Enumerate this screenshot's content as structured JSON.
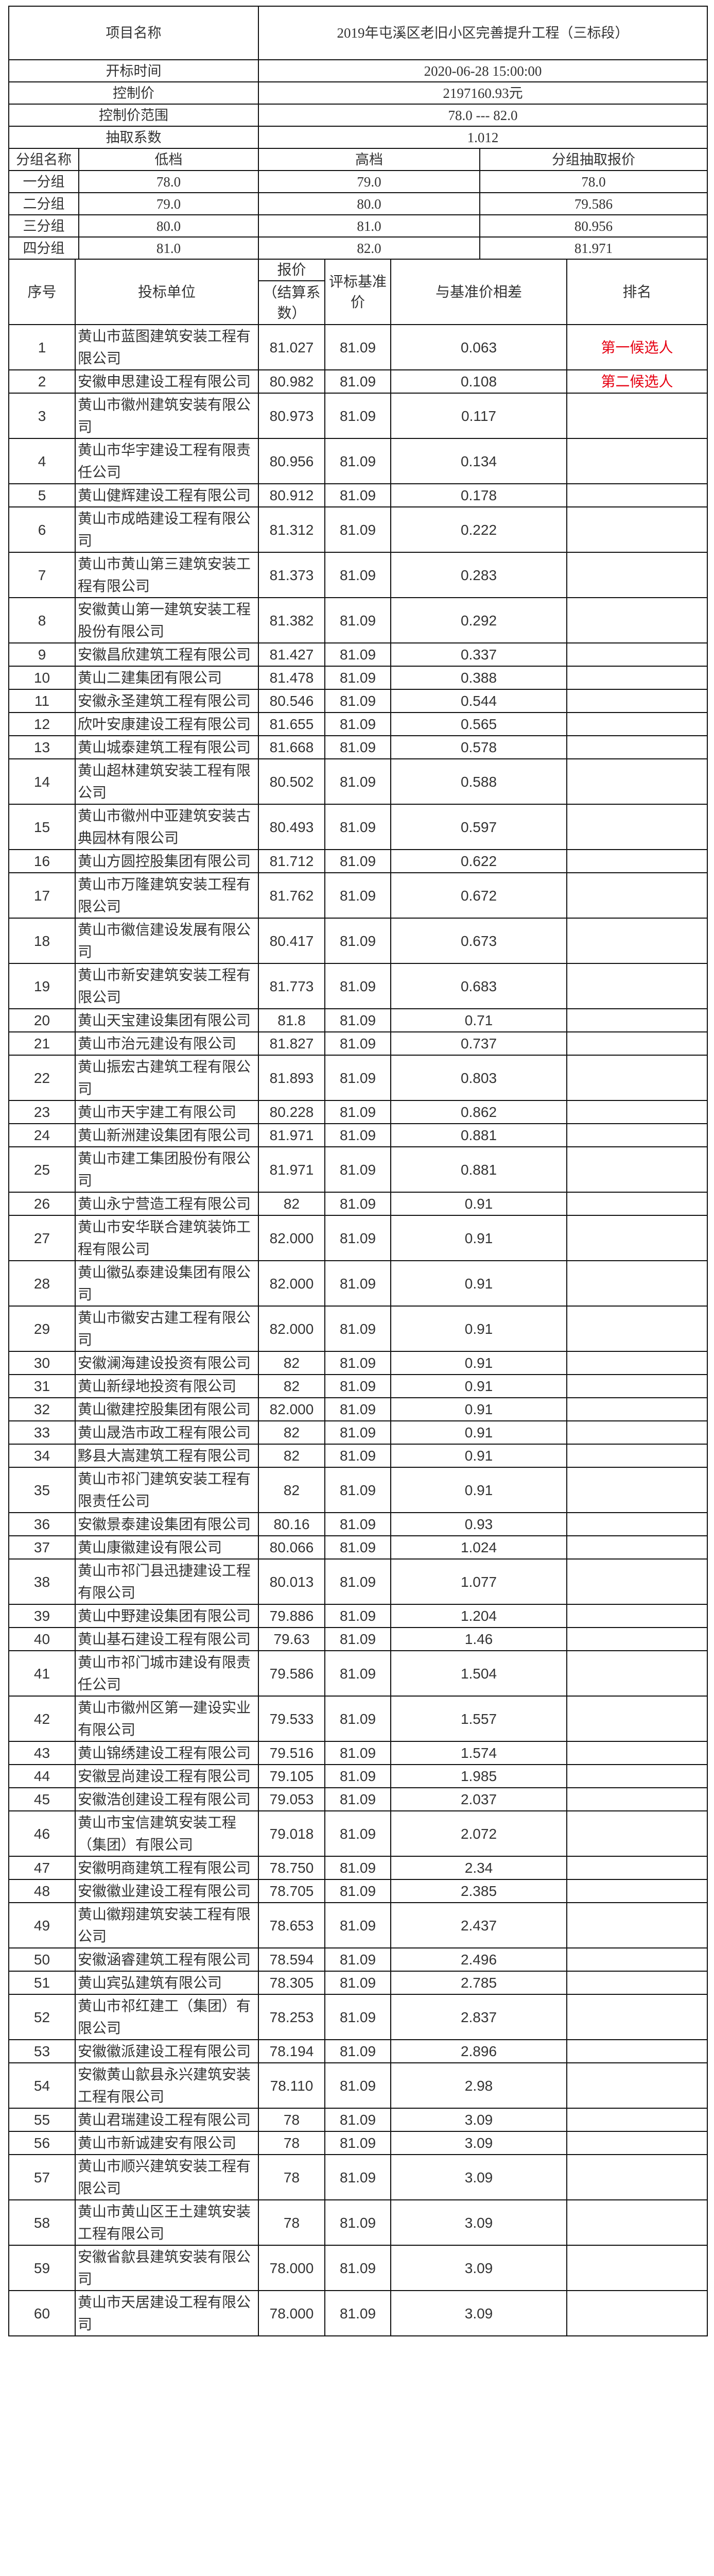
{
  "info": {
    "project_label": "项目名称",
    "project_value": "2019年屯溪区老旧小区完善提升工程（三标段）",
    "open_time_label": "开标时间",
    "open_time_value": "2020-06-28 15:00:00",
    "control_price_label": "控制价",
    "control_price_value": "2197160.93元",
    "control_range_label": "控制价范围",
    "control_range_value": "78.0 --- 82.0",
    "coefficient_label": "抽取系数",
    "coefficient_value": "1.012"
  },
  "groups": {
    "headers": [
      "分组名称",
      "低档",
      "高档",
      "分组抽取报价"
    ],
    "rows": [
      [
        "一分组",
        "78.0",
        "79.0",
        "78.0"
      ],
      [
        "二分组",
        "79.0",
        "80.0",
        "79.586"
      ],
      [
        "三分组",
        "80.0",
        "81.0",
        "80.956"
      ],
      [
        "四分组",
        "81.0",
        "82.0",
        "81.971"
      ]
    ]
  },
  "results": {
    "headers": {
      "no": "序号",
      "bidder": "投标单位",
      "bid_top": "报价",
      "bid_bottom": "（结算系数）",
      "base": "评标基准价",
      "diff": "与基准价相差",
      "rank": "排名"
    },
    "rank_color": "#e60012",
    "rows": [
      [
        "1",
        "黄山市蓝图建筑安装工程有限公司",
        "81.027",
        "81.09",
        "0.063",
        "第一候选人"
      ],
      [
        "2",
        "安徽申思建设工程有限公司",
        "80.982",
        "81.09",
        "0.108",
        "第二候选人"
      ],
      [
        "3",
        "黄山市徽州建筑安装有限公司",
        "80.973",
        "81.09",
        "0.117",
        ""
      ],
      [
        "4",
        "黄山市华宇建设工程有限责任公司",
        "80.956",
        "81.09",
        "0.134",
        ""
      ],
      [
        "5",
        "黄山健辉建设工程有限公司",
        "80.912",
        "81.09",
        "0.178",
        ""
      ],
      [
        "6",
        "黄山市成皓建设工程有限公司",
        "81.312",
        "81.09",
        "0.222",
        ""
      ],
      [
        "7",
        "黄山市黄山第三建筑安装工程有限公司",
        "81.373",
        "81.09",
        "0.283",
        ""
      ],
      [
        "8",
        "安徽黄山第一建筑安装工程股份有限公司",
        "81.382",
        "81.09",
        "0.292",
        ""
      ],
      [
        "9",
        "安徽昌欣建筑工程有限公司",
        "81.427",
        "81.09",
        "0.337",
        ""
      ],
      [
        "10",
        "黄山二建集团有限公司",
        "81.478",
        "81.09",
        "0.388",
        ""
      ],
      [
        "11",
        "安徽永圣建筑工程有限公司",
        "80.546",
        "81.09",
        "0.544",
        ""
      ],
      [
        "12",
        "欣叶安康建设工程有限公司",
        "81.655",
        "81.09",
        "0.565",
        ""
      ],
      [
        "13",
        "黄山城泰建筑工程有限公司",
        "81.668",
        "81.09",
        "0.578",
        ""
      ],
      [
        "14",
        "黄山超林建筑安装工程有限公司",
        "80.502",
        "81.09",
        "0.588",
        ""
      ],
      [
        "15",
        "黄山市徽州中亚建筑安装古典园林有限公司",
        "80.493",
        "81.09",
        "0.597",
        ""
      ],
      [
        "16",
        "黄山方圆控股集团有限公司",
        "81.712",
        "81.09",
        "0.622",
        ""
      ],
      [
        "17",
        "黄山市万隆建筑安装工程有限公司",
        "81.762",
        "81.09",
        "0.672",
        ""
      ],
      [
        "18",
        "黄山市徽信建设发展有限公司",
        "80.417",
        "81.09",
        "0.673",
        ""
      ],
      [
        "19",
        "黄山市新安建筑安装工程有限公司",
        "81.773",
        "81.09",
        "0.683",
        ""
      ],
      [
        "20",
        "黄山天宝建设集团有限公司",
        "81.8",
        "81.09",
        "0.71",
        ""
      ],
      [
        "21",
        "黄山市治元建设有限公司",
        "81.827",
        "81.09",
        "0.737",
        ""
      ],
      [
        "22",
        "黄山振宏古建筑工程有限公司",
        "81.893",
        "81.09",
        "0.803",
        ""
      ],
      [
        "23",
        "黄山市天宇建工有限公司",
        "80.228",
        "81.09",
        "0.862",
        ""
      ],
      [
        "24",
        "黄山新洲建设集团有限公司",
        "81.971",
        "81.09",
        "0.881",
        ""
      ],
      [
        "25",
        "黄山市建工集团股份有限公司",
        "81.971",
        "81.09",
        "0.881",
        ""
      ],
      [
        "26",
        "黄山永宁营造工程有限公司",
        "82",
        "81.09",
        "0.91",
        ""
      ],
      [
        "27",
        "黄山市安华联合建筑装饰工程有限公司",
        "82.000",
        "81.09",
        "0.91",
        ""
      ],
      [
        "28",
        "黄山徽弘泰建设集团有限公司",
        "82.000",
        "81.09",
        "0.91",
        ""
      ],
      [
        "29",
        "黄山市徽安古建工程有限公司",
        "82.000",
        "81.09",
        "0.91",
        ""
      ],
      [
        "30",
        "安徽澜海建设投资有限公司",
        "82",
        "81.09",
        "0.91",
        ""
      ],
      [
        "31",
        "黄山新绿地投资有限公司",
        "82",
        "81.09",
        "0.91",
        ""
      ],
      [
        "32",
        "黄山徽建控股集团有限公司",
        "82.000",
        "81.09",
        "0.91",
        ""
      ],
      [
        "33",
        "黄山晟浩市政工程有限公司",
        "82",
        "81.09",
        "0.91",
        ""
      ],
      [
        "34",
        "黟县大嵩建筑工程有限公司",
        "82",
        "81.09",
        "0.91",
        ""
      ],
      [
        "35",
        "黄山市祁门建筑安装工程有限责任公司",
        "82",
        "81.09",
        "0.91",
        ""
      ],
      [
        "36",
        "安徽景泰建设集团有限公司",
        "80.16",
        "81.09",
        "0.93",
        ""
      ],
      [
        "37",
        "黄山康徽建设有限公司",
        "80.066",
        "81.09",
        "1.024",
        ""
      ],
      [
        "38",
        "黄山市祁门县迅捷建设工程有限公司",
        "80.013",
        "81.09",
        "1.077",
        ""
      ],
      [
        "39",
        "黄山中野建设集团有限公司",
        "79.886",
        "81.09",
        "1.204",
        ""
      ],
      [
        "40",
        "黄山基石建设工程有限公司",
        "79.63",
        "81.09",
        "1.46",
        ""
      ],
      [
        "41",
        "黄山市祁门城市建设有限责任公司",
        "79.586",
        "81.09",
        "1.504",
        ""
      ],
      [
        "42",
        "黄山市徽州区第一建设实业有限公司",
        "79.533",
        "81.09",
        "1.557",
        ""
      ],
      [
        "43",
        "黄山锦绣建设工程有限公司",
        "79.516",
        "81.09",
        "1.574",
        ""
      ],
      [
        "44",
        "安徽昱尚建设工程有限公司",
        "79.105",
        "81.09",
        "1.985",
        ""
      ],
      [
        "45",
        "安徽浩创建设工程有限公司",
        "79.053",
        "81.09",
        "2.037",
        ""
      ],
      [
        "46",
        "黄山市宝信建筑安装工程（集团）有限公司",
        "79.018",
        "81.09",
        "2.072",
        ""
      ],
      [
        "47",
        "安徽明商建筑工程有限公司",
        "78.750",
        "81.09",
        "2.34",
        ""
      ],
      [
        "48",
        "安徽徽业建设工程有限公司",
        "78.705",
        "81.09",
        "2.385",
        ""
      ],
      [
        "49",
        "黄山徽翔建筑安装工程有限公司",
        "78.653",
        "81.09",
        "2.437",
        ""
      ],
      [
        "50",
        "安徽涵睿建筑工程有限公司",
        "78.594",
        "81.09",
        "2.496",
        ""
      ],
      [
        "51",
        "黄山宾弘建筑有限公司",
        "78.305",
        "81.09",
        "2.785",
        ""
      ],
      [
        "52",
        "黄山市祁红建工（集团）有限公司",
        "78.253",
        "81.09",
        "2.837",
        ""
      ],
      [
        "53",
        "安徽徽派建设工程有限公司",
        "78.194",
        "81.09",
        "2.896",
        ""
      ],
      [
        "54",
        "安徽黄山歙县永兴建筑安装工程有限公司",
        "78.110",
        "81.09",
        "2.98",
        ""
      ],
      [
        "55",
        "黄山君瑞建设工程有限公司",
        "78",
        "81.09",
        "3.09",
        ""
      ],
      [
        "56",
        "黄山市新诚建安有限公司",
        "78",
        "81.09",
        "3.09",
        ""
      ],
      [
        "57",
        "黄山市顺兴建筑安装工程有限公司",
        "78",
        "81.09",
        "3.09",
        ""
      ],
      [
        "58",
        "黄山市黄山区王土建筑安装工程有限公司",
        "78",
        "81.09",
        "3.09",
        ""
      ],
      [
        "59",
        "安徽省歙县建筑安装有限公司",
        "78.000",
        "81.09",
        "3.09",
        ""
      ],
      [
        "60",
        "黄山市天居建设工程有限公司",
        "78.000",
        "81.09",
        "3.09",
        ""
      ]
    ]
  }
}
